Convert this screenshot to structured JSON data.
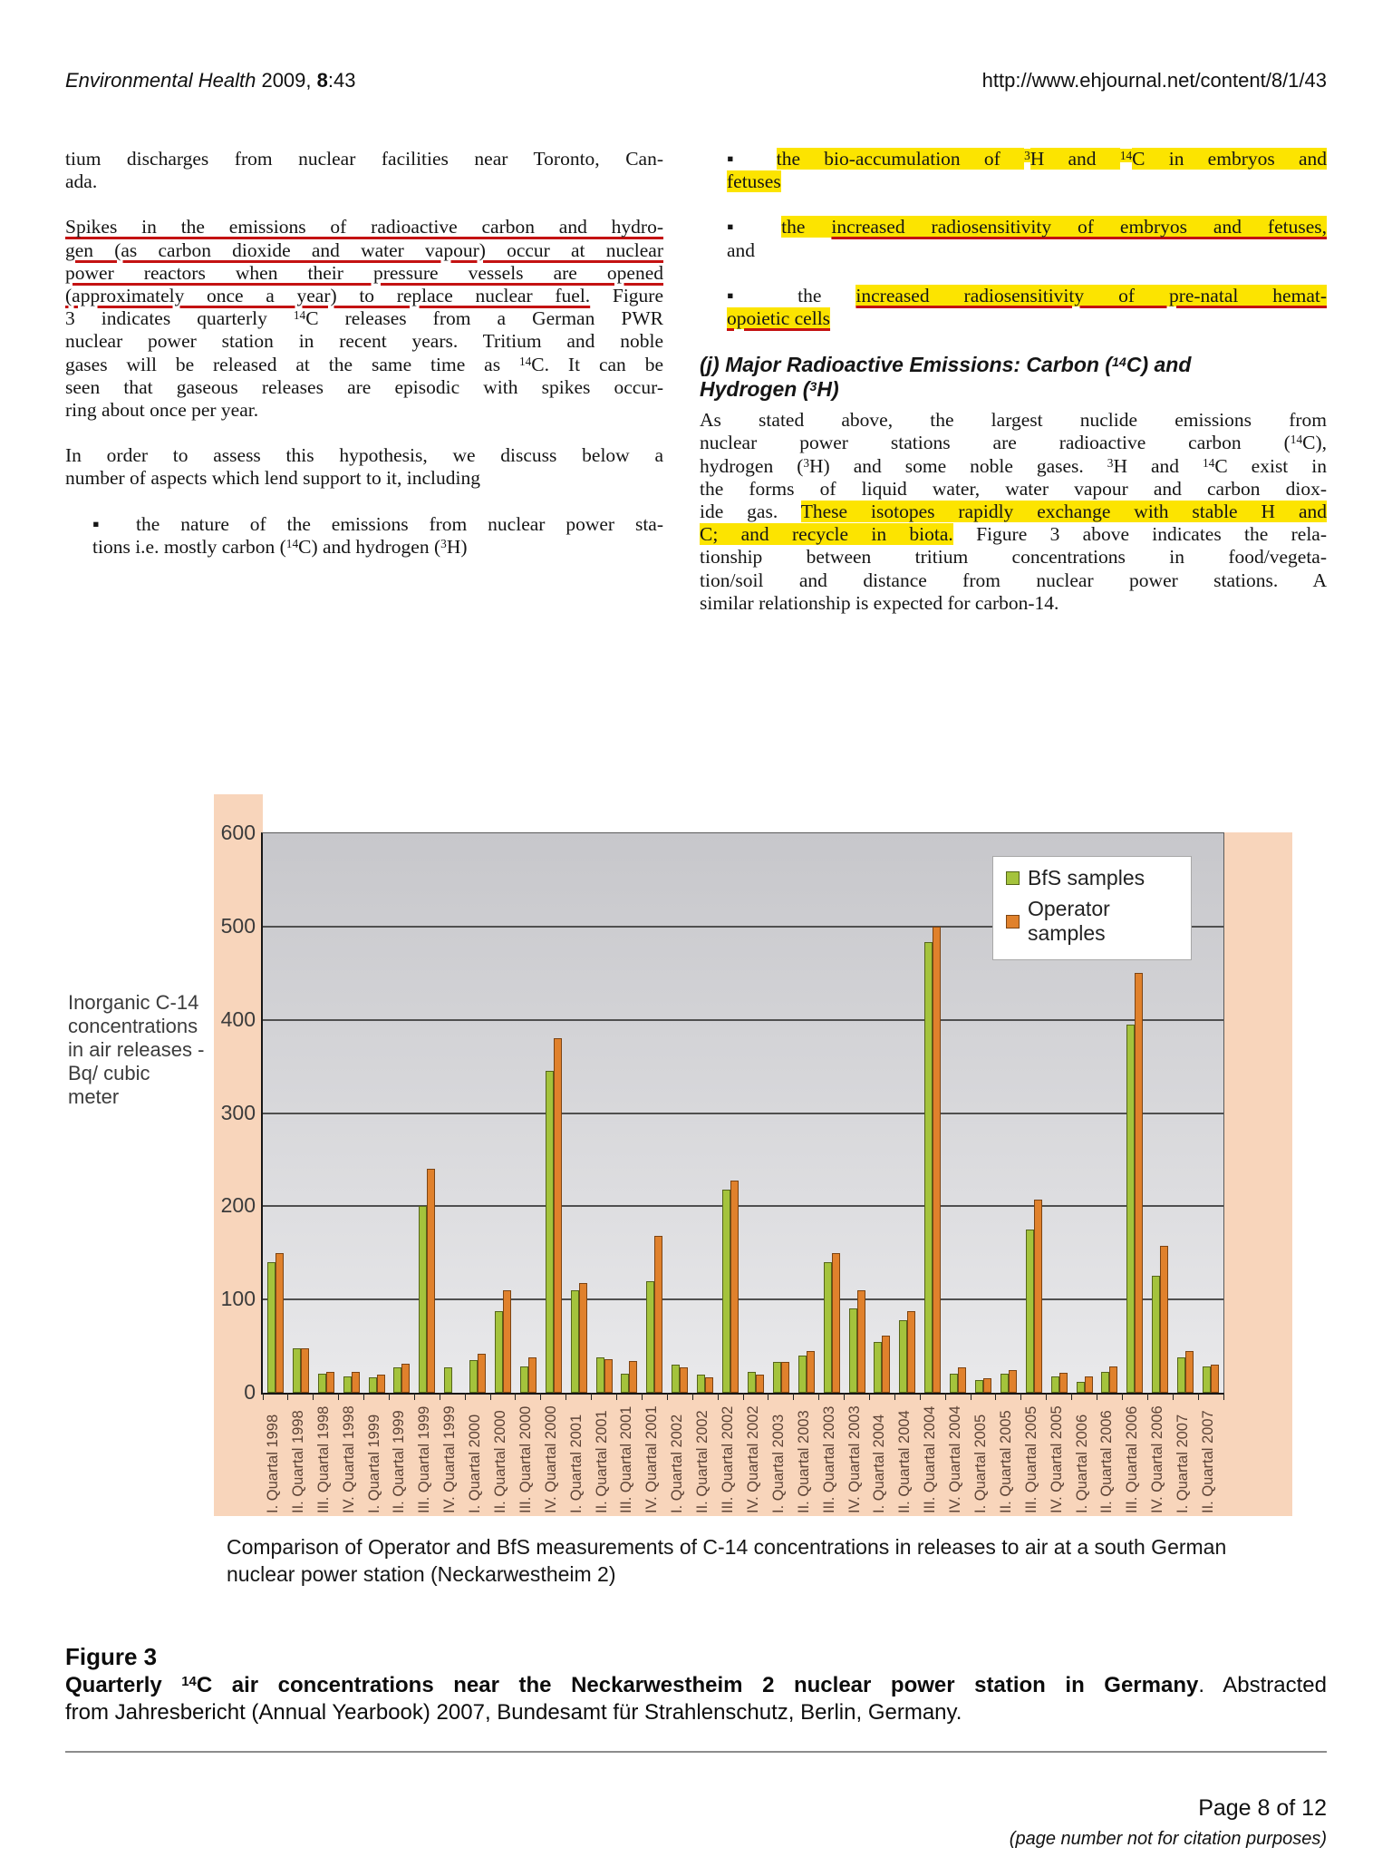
{
  "header": {
    "left_segments": [
      {
        "t": "Environmental Health",
        "s": "i"
      },
      {
        "t": " 2009, ",
        "s": "n"
      },
      {
        "t": "8",
        "s": "b"
      },
      {
        "t": ":43",
        "s": "n"
      }
    ],
    "right_url": "http://www.ehjournal.net/content/8/1/43"
  },
  "left_column": {
    "p1": {
      "lines": [
        {
          "seg": [
            {
              "t": "tium discharges from nuclear facilities near Toronto, Can-",
              "s": "n"
            }
          ]
        },
        {
          "seg": [
            {
              "t": "ada.",
              "s": "n"
            }
          ],
          "last": true
        }
      ]
    },
    "p2": {
      "lines": [
        {
          "seg": [
            {
              "t": "Spikes in the emissions of radioactive carbon and hydro-",
              "s": "ul"
            }
          ]
        },
        {
          "seg": [
            {
              "t": "gen (as carbon dioxide and water vapour) occur at nuclear",
              "s": "ul"
            }
          ]
        },
        {
          "seg": [
            {
              "t": "power reactors when their pressure vessels are opened",
              "s": "ul"
            }
          ]
        },
        {
          "seg": [
            {
              "t": "(approximately once a year) to replace nuclear fuel.",
              "s": "ul"
            },
            {
              "t": " Figure",
              "s": "n"
            }
          ]
        },
        {
          "seg": [
            {
              "t": "3 indicates quarterly ",
              "s": "n"
            },
            {
              "t": "14",
              "s": "sup"
            },
            {
              "t": "C releases from a German PWR",
              "s": "n"
            }
          ]
        },
        {
          "seg": [
            {
              "t": "nuclear power station in recent years. Tritium and noble",
              "s": "n"
            }
          ]
        },
        {
          "seg": [
            {
              "t": "gases will be released at the same time as ",
              "s": "n"
            },
            {
              "t": "14",
              "s": "sup"
            },
            {
              "t": "C. It can be",
              "s": "n"
            }
          ]
        },
        {
          "seg": [
            {
              "t": "seen that gaseous releases are episodic with spikes occur-",
              "s": "n"
            }
          ]
        },
        {
          "seg": [
            {
              "t": "ring about once per year.",
              "s": "n"
            }
          ],
          "last": true
        }
      ]
    },
    "p3": {
      "lines": [
        {
          "seg": [
            {
              "t": "In order to assess this hypothesis, we discuss below a",
              "s": "n"
            }
          ]
        },
        {
          "seg": [
            {
              "t": "number of aspects which lend support to it, including",
              "s": "n"
            }
          ],
          "last": true
        }
      ]
    },
    "b1": {
      "lines": [
        {
          "seg": [
            {
              "t": "▪ the nature of the emissions from nuclear power sta-",
              "s": "n"
            }
          ]
        },
        {
          "seg": [
            {
              "t": "tions i.e. mostly carbon (",
              "s": "n"
            },
            {
              "t": "14",
              "s": "sup"
            },
            {
              "t": "C) and hydrogen (",
              "s": "n"
            },
            {
              "t": "3",
              "s": "sup"
            },
            {
              "t": "H)",
              "s": "n"
            }
          ],
          "last": true
        }
      ]
    }
  },
  "right_column": {
    "b1": {
      "lines": [
        {
          "seg": [
            {
              "t": "▪ ",
              "s": "n"
            },
            {
              "t": "the bio-accumulation of ",
              "s": "hl"
            },
            {
              "t": "3",
              "s": "sup hl"
            },
            {
              "t": "H and ",
              "s": "hl"
            },
            {
              "t": "14",
              "s": "sup hl"
            },
            {
              "t": "C in embryos and",
              "s": "hl"
            }
          ]
        },
        {
          "seg": [
            {
              "t": "fetuses",
              "s": "hl"
            }
          ],
          "last": true
        }
      ]
    },
    "b2": {
      "lines": [
        {
          "seg": [
            {
              "t": "▪ ",
              "s": "n"
            },
            {
              "t": "the ",
              "s": "hl"
            },
            {
              "t": "increased radiosensitivity of embryos and fetuses,",
              "s": "hl ul"
            }
          ]
        },
        {
          "seg": [
            {
              "t": "and",
              "s": "n"
            }
          ],
          "last": true
        }
      ]
    },
    "b3": {
      "lines": [
        {
          "seg": [
            {
              "t": "▪ the ",
              "s": "n"
            },
            {
              "t": "increased radiosensitivity of pre-natal hemat-",
              "s": "hl ul"
            }
          ]
        },
        {
          "seg": [
            {
              "t": "opoietic cells",
              "s": "hl ul"
            }
          ],
          "last": true
        }
      ]
    },
    "heading": {
      "lines": [
        {
          "seg": [
            {
              "t": "(j) Major Radioactive Emissions: Carbon (",
              "s": "n"
            },
            {
              "t": "14",
              "s": "sup"
            },
            {
              "t": "C) and",
              "s": "n"
            }
          ]
        },
        {
          "seg": [
            {
              "t": "Hydrogen (",
              "s": "n"
            },
            {
              "t": "3",
              "s": "sup"
            },
            {
              "t": "H)",
              "s": "n"
            }
          ],
          "last": true
        }
      ]
    },
    "para": {
      "lines": [
        {
          "seg": [
            {
              "t": "As stated above, the largest nuclide emissions from",
              "s": "n"
            }
          ]
        },
        {
          "seg": [
            {
              "t": "nuclear power stations are radioactive carbon (",
              "s": "n"
            },
            {
              "t": "14",
              "s": "sup"
            },
            {
              "t": "C),",
              "s": "n"
            }
          ]
        },
        {
          "seg": [
            {
              "t": "hydrogen (",
              "s": "n"
            },
            {
              "t": "3",
              "s": "sup"
            },
            {
              "t": "H) and some noble gases. ",
              "s": "n"
            },
            {
              "t": "3",
              "s": "sup"
            },
            {
              "t": "H and ",
              "s": "n"
            },
            {
              "t": "14",
              "s": "sup"
            },
            {
              "t": "C exist in",
              "s": "n"
            }
          ]
        },
        {
          "seg": [
            {
              "t": "the forms of liquid water, water vapour and carbon diox-",
              "s": "n"
            }
          ]
        },
        {
          "seg": [
            {
              "t": "ide gas. ",
              "s": "n"
            },
            {
              "t": "These isotopes rapidly exchange with stable H and",
              "s": "hl"
            }
          ]
        },
        {
          "seg": [
            {
              "t": "C; and recycle in biota.",
              "s": "hl"
            },
            {
              "t": " Figure 3 above indicates the rela-",
              "s": "n"
            }
          ]
        },
        {
          "seg": [
            {
              "t": "tionship between tritium concentrations in food/vegeta-",
              "s": "n"
            }
          ]
        },
        {
          "seg": [
            {
              "t": "tion/soil and distance from nuclear power stations. A",
              "s": "n"
            }
          ]
        },
        {
          "seg": [
            {
              "t": "similar relationship is expected for carbon-14.",
              "s": "n"
            }
          ],
          "last": true
        }
      ]
    }
  },
  "figure": {
    "ylabel": "Inorganic C-14\nconcentrations\nin air releases -\nBq/ cubic\nmeter",
    "sub_caption": {
      "lines": [
        {
          "seg": [
            {
              "t": "Comparison of Operator and BfS measurements of C-14 concentrations in releases to air at a south German",
              "s": "n"
            }
          ]
        },
        {
          "seg": [
            {
              "t": "nuclear power station (Neckarwestheim 2)",
              "s": "n"
            }
          ],
          "last": true
        }
      ]
    },
    "caption_title": "Figure 3",
    "caption": {
      "lines": [
        {
          "seg": [
            {
              "t": "Quarterly ",
              "s": "b"
            },
            {
              "t": "14",
              "s": "b sup"
            },
            {
              "t": "C air concentrations near the Neckarwestheim 2 nuclear power station in Germany",
              "s": "b"
            },
            {
              "t": ". Abstracted",
              "s": "n"
            }
          ]
        },
        {
          "seg": [
            {
              "t": "from Jahresbericht (Annual Yearbook) 2007, Bundesamt für Strahlenschutz, Berlin, Germany.",
              "s": "n"
            }
          ],
          "last": true
        }
      ]
    }
  },
  "chart_data": {
    "type": "bar",
    "title": "",
    "xlabel": "",
    "ylabel": "Inorganic C-14 concentrations in air releases - Bq/ cubic meter",
    "ylim": [
      0,
      600
    ],
    "yticks": [
      0,
      100,
      200,
      300,
      400,
      500,
      600
    ],
    "grid": true,
    "legend_position": "top-right",
    "categories": [
      "I. Quartal 1998",
      "II. Quartal 1998",
      "III. Quartal 1998",
      "IV. Quartal 1998",
      "I. Quartal 1999",
      "II. Quartal 1999",
      "III. Quartal 1999",
      "IV. Quartal 1999",
      "I. Quartal 2000",
      "II. Quartal 2000",
      "III. Quartal 2000",
      "IV. Quartal 2000",
      "I. Quartal 2001",
      "II. Quartal 2001",
      "III. Quartal 2001",
      "IV. Quartal 2001",
      "I. Quartal 2002",
      "II. Quartal 2002",
      "III. Quartal 2002",
      "IV. Quartal 2002",
      "I. Quartal 2003",
      "II. Quartal 2003",
      "III. Quartal 2003",
      "IV. Quartal 2003",
      "I. Quartal 2004",
      "II. Quartal 2004",
      "III. Quartal 2004",
      "IV. Quartal 2004",
      "I. Quartal 2005",
      "II. Quartal 2005",
      "III. Quartal 2005",
      "IV. Quartal 2005",
      "I. Quartal 2006",
      "II. Quartal 2006",
      "III. Quartal 2006",
      "IV. Quartal 2006",
      "I. Quartal 2007",
      "II. Quartal 2007"
    ],
    "series": [
      {
        "name": "BfS samples",
        "color": "#a4c33c",
        "border": "#55651a",
        "values": [
          140,
          48,
          20,
          18,
          17,
          27,
          200,
          27,
          35,
          88,
          28,
          345,
          110,
          38,
          20,
          120,
          30,
          19,
          218,
          22,
          33,
          40,
          140,
          90,
          54,
          78,
          483,
          20,
          14,
          20,
          175,
          18,
          12,
          22,
          395,
          125,
          38,
          28
        ]
      },
      {
        "name": "Operator samples",
        "color": "#e0812c",
        "border": "#7c4413",
        "values": [
          150,
          48,
          22,
          22,
          19,
          31,
          240,
          0,
          42,
          110,
          38,
          380,
          118,
          36,
          34,
          168,
          27,
          17,
          228,
          19,
          33,
          45,
          150,
          110,
          61,
          88,
          500,
          27,
          16,
          24,
          207,
          21,
          18,
          28,
          450,
          158,
          45,
          30
        ]
      }
    ]
  },
  "footer": {
    "page_label": "Page 8 of 12",
    "note": "(page number not for citation purposes)"
  }
}
